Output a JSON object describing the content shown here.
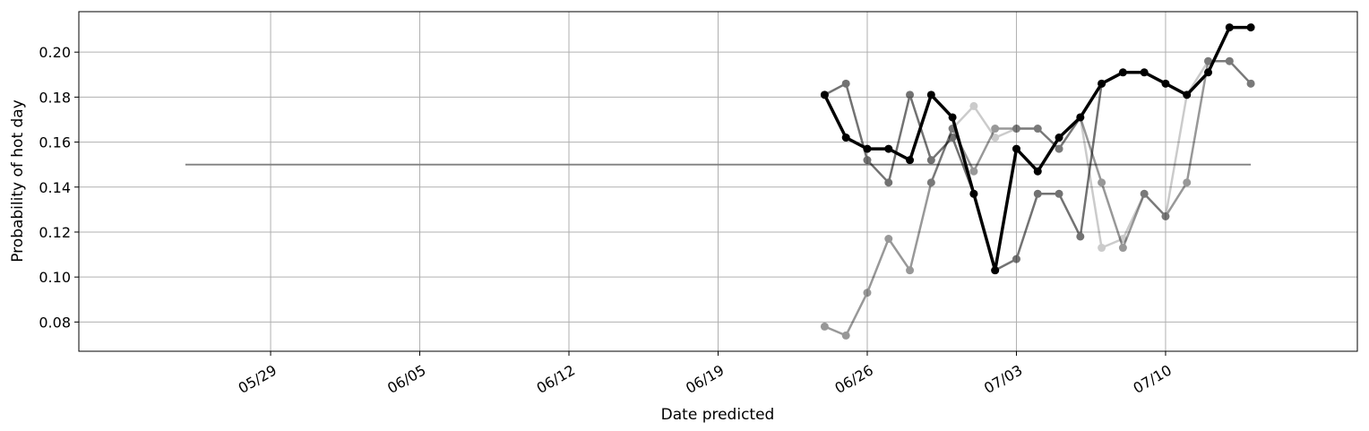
{
  "chart_data": {
    "type": "line",
    "xlabel": "Date predicted",
    "ylabel": "Probability of hot day",
    "xlim": [
      "2024-05-20",
      "2024-07-19"
    ],
    "ylim": [
      0.067,
      0.218
    ],
    "grid": true,
    "x_ticks": [
      {
        "date": "2024-05-29",
        "label": "05/29"
      },
      {
        "date": "2024-06-05",
        "label": "06/05"
      },
      {
        "date": "2024-06-12",
        "label": "06/12"
      },
      {
        "date": "2024-06-19",
        "label": "06/19"
      },
      {
        "date": "2024-06-26",
        "label": "06/26"
      },
      {
        "date": "2024-07-03",
        "label": "07/03"
      },
      {
        "date": "2024-07-10",
        "label": "07/10"
      }
    ],
    "y_ticks": [
      {
        "value": 0.08,
        "label": "0.08"
      },
      {
        "value": 0.1,
        "label": "0.10"
      },
      {
        "value": 0.12,
        "label": "0.12"
      },
      {
        "value": 0.14,
        "label": "0.14"
      },
      {
        "value": 0.16,
        "label": "0.16"
      },
      {
        "value": 0.18,
        "label": "0.18"
      },
      {
        "value": 0.2,
        "label": "0.20"
      }
    ],
    "reference_line": {
      "x": [
        "2024-05-25",
        "2024-07-14"
      ],
      "value": 0.15,
      "color": "#808080"
    },
    "series_dates": [
      "2024-06-24",
      "2024-06-25",
      "2024-06-26",
      "2024-06-27",
      "2024-06-28",
      "2024-06-29",
      "2024-06-30",
      "2024-07-01",
      "2024-07-02",
      "2024-07-03",
      "2024-07-04",
      "2024-07-05",
      "2024-07-06",
      "2024-07-07",
      "2024-07-08",
      "2024-07-09",
      "2024-07-10",
      "2024-07-11",
      "2024-07-12",
      "2024-07-13",
      "2024-07-14"
    ],
    "series": [
      {
        "color": "#000000",
        "opacity": 0.2,
        "width": 2.5,
        "values": [
          null,
          null,
          null,
          null,
          null,
          0.142,
          0.166,
          0.176,
          0.162,
          0.166,
          0.166,
          0.157,
          0.171,
          0.113,
          0.117,
          0.137,
          0.127,
          0.181,
          0.196,
          0.196,
          0.186
        ]
      },
      {
        "color": "#000000",
        "opacity": 0.4,
        "width": 2.5,
        "values": [
          0.078,
          0.074,
          0.093,
          0.117,
          0.103,
          0.142,
          0.166,
          0.147,
          0.166,
          0.166,
          0.166,
          0.157,
          0.171,
          0.142,
          0.113,
          0.137,
          0.127,
          0.142,
          0.196,
          0.196,
          0.186
        ]
      },
      {
        "color": "#000000",
        "opacity": 0.55,
        "width": 2.5,
        "values": [
          0.181,
          0.186,
          0.152,
          0.142,
          0.181,
          0.152,
          0.162,
          0.137,
          0.103,
          0.108,
          0.137,
          0.137,
          0.118,
          0.186,
          null,
          null,
          null,
          null,
          null,
          null,
          null
        ]
      },
      {
        "color": "#000000",
        "opacity": 1.0,
        "width": 3.5,
        "values": [
          0.181,
          0.162,
          0.157,
          0.157,
          0.152,
          0.181,
          0.171,
          0.137,
          0.103,
          0.157,
          0.147,
          0.162,
          0.171,
          0.186,
          0.191,
          0.191,
          0.186,
          0.181,
          0.191,
          0.211,
          0.211
        ]
      }
    ]
  }
}
